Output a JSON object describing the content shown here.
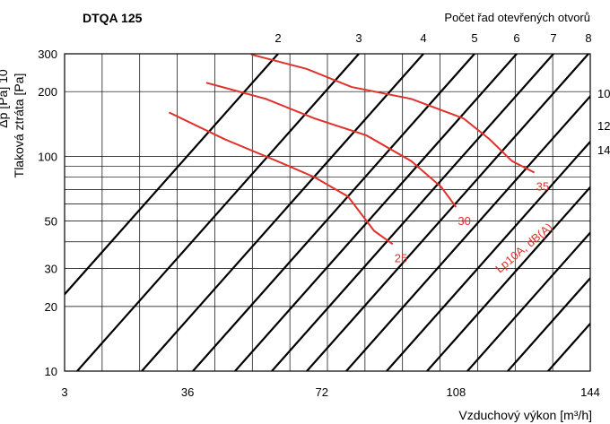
{
  "chart_data": {
    "type": "line",
    "title": "DTQA 125",
    "xlabel": "Vzduchový výkon [m³/h]",
    "ylabel": "Tlaková ztráta [Pa]",
    "ylabel_left_partial": "Δp [Pa] 10",
    "top_label": "Počet řad otevřených otvorů",
    "x_ticks": [
      "3",
      "36",
      "72",
      "108",
      "144"
    ],
    "y_ticks": [
      "10",
      "20",
      "30",
      "50",
      "100",
      "200",
      "300"
    ],
    "xlim": [
      3,
      144
    ],
    "ylim": [
      10,
      300
    ],
    "yscale": "log",
    "opening_rows": [
      "2",
      "3",
      "4",
      "5",
      "6",
      "7",
      "8"
    ],
    "right_labels": [
      "10",
      "12",
      "14"
    ],
    "noise_label": "Lp10A, dB(A)",
    "noise_curves": [
      {
        "label": "25",
        "points": [
          [
            31,
            160
          ],
          [
            46,
            120
          ],
          [
            60,
            95
          ],
          [
            70,
            80
          ],
          [
            79,
            65
          ],
          [
            86,
            45
          ],
          [
            91,
            39
          ]
        ]
      },
      {
        "label": "30",
        "points": [
          [
            41,
            220
          ],
          [
            57,
            185
          ],
          [
            70,
            150
          ],
          [
            84,
            125
          ],
          [
            96,
            95
          ],
          [
            104,
            72
          ],
          [
            108,
            58
          ]
        ]
      },
      {
        "label": "35",
        "points": [
          [
            53,
            298
          ],
          [
            68,
            255
          ],
          [
            80,
            210
          ],
          [
            96,
            185
          ],
          [
            110,
            150
          ],
          [
            117,
            120
          ],
          [
            123,
            95
          ],
          [
            129,
            84
          ]
        ]
      }
    ]
  }
}
